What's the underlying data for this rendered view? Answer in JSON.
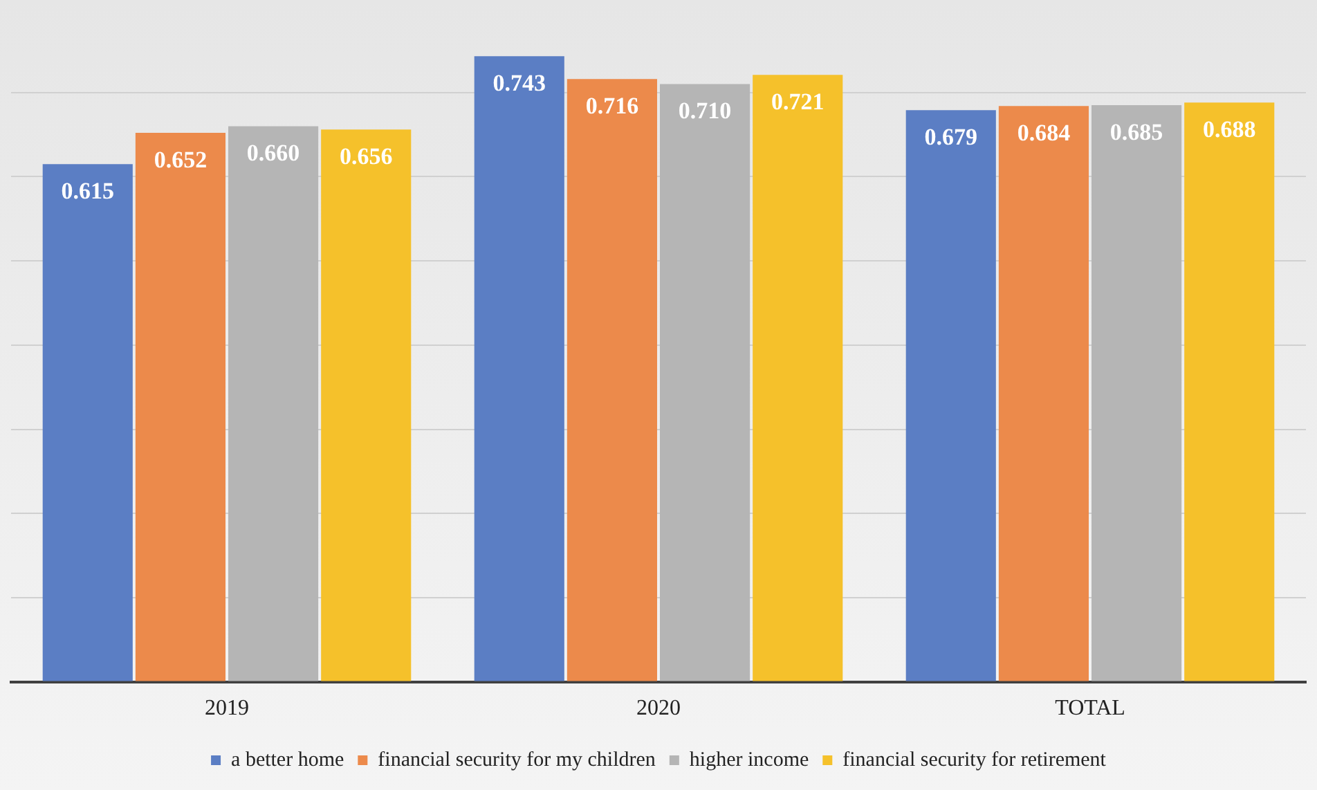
{
  "chart_data": {
    "type": "bar",
    "categories": [
      "2019",
      "2020",
      "TOTAL"
    ],
    "series": [
      {
        "name": "a better home",
        "color": "#5b7ec4",
        "values": [
          0.615,
          0.743,
          0.679
        ],
        "value_labels": [
          "0.615",
          "0.743",
          "0.679"
        ]
      },
      {
        "name": "financial security for my children",
        "color": "#ec8a4b",
        "values": [
          0.652,
          0.716,
          0.684
        ],
        "value_labels": [
          "0.652",
          "0.716",
          "0.684"
        ]
      },
      {
        "name": "higher income",
        "color": "#b5b5b5",
        "values": [
          0.66,
          0.71,
          0.685
        ],
        "value_labels": [
          "0.660",
          "0.710",
          "0.685"
        ]
      },
      {
        "name": "financial security for retirement",
        "color": "#f5c12b",
        "values": [
          0.656,
          0.721,
          0.688
        ],
        "value_labels": [
          "0.656",
          "0.721",
          "0.688"
        ]
      }
    ],
    "yticks": [
      {
        "value": 0,
        "label": null
      },
      {
        "value": 0.1,
        "label": null
      },
      {
        "value": 0.2,
        "label": null
      },
      {
        "value": 0.3,
        "label": null
      },
      {
        "value": 0.4,
        "label": null
      },
      {
        "value": 0.5,
        "label": null
      },
      {
        "value": 0.6,
        "label": null
      },
      {
        "value": 0.7,
        "label": null
      }
    ],
    "grid": "y",
    "legend": "bottom",
    "tick_labels": "x"
  }
}
